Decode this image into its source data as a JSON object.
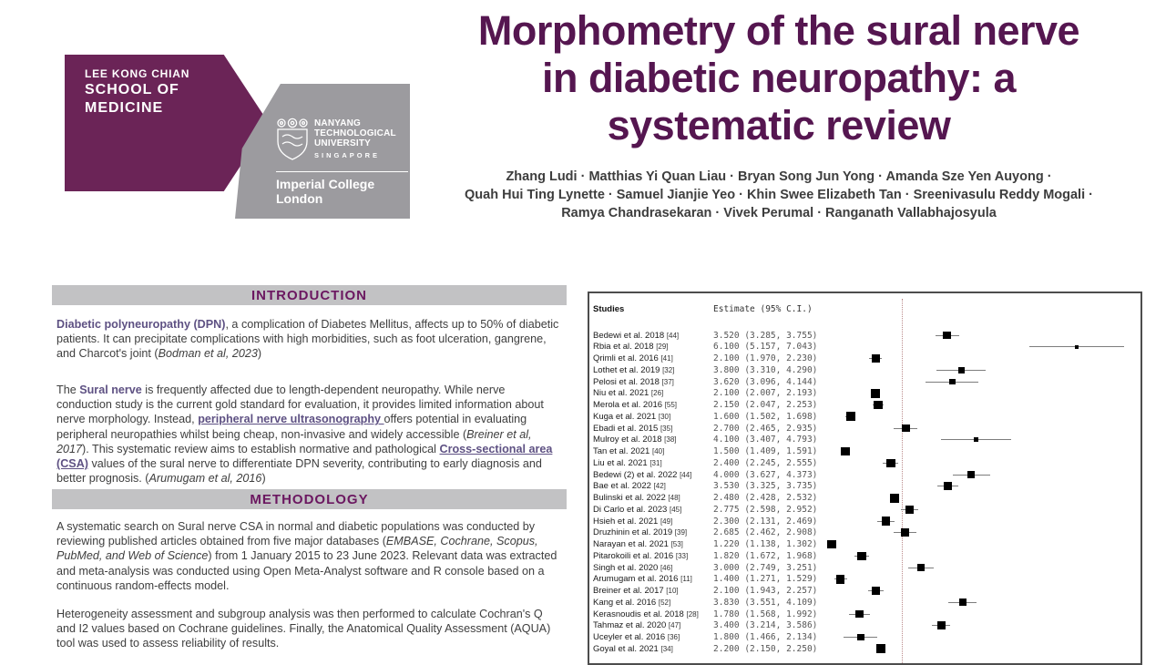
{
  "colors": {
    "maroon": "#6b2457",
    "logo_gray": "#9c9b9f",
    "title_purple": "#551650",
    "heading_purple": "#6b1760",
    "term_purple": "#5e5183",
    "bar_gray": "#c2c2c4",
    "ref_line": "#bb8b8b"
  },
  "logo": {
    "school_lines": [
      "LEE KONG CHIAN",
      "SCHOOL OF",
      "MEDICINE"
    ],
    "ntu_lines": [
      "NANYANG",
      "TECHNOLOGICAL",
      "UNIVERSITY"
    ],
    "ntu_country": "SINGAPORE",
    "imperial_lines": [
      "Imperial College",
      "London"
    ]
  },
  "header": {
    "title_lines": [
      "Morphometry of the sural nerve",
      "in diabetic neuropathy: a",
      "systematic review"
    ],
    "author_lines": [
      "Zhang Ludi  · Matthias Yi Quan Liau  · Bryan Song Jun Yong  · Amanda Sze Yen Auyong  ·",
      "Quah Hui Ting Lynette  · Samuel Jianjie Yeo  · Khin Swee Elizabeth Tan  · Sreenivasulu Reddy Mogali  ·",
      "Ramya Chandrasekaran  · Vivek Perumal  · Ranganath Vallabhajosyula"
    ]
  },
  "intro": {
    "heading": "INTRODUCTION",
    "paragraphs": [
      [
        {
          "s": "term",
          "t": "Diabetic polyneuropathy (DPN)"
        },
        {
          "s": "n",
          "t": ", a complication of Diabetes Mellitus, affects up to 50% of diabetic patients. It can precipitate complications with high morbidities, such as foot ulceration, gangrene, and Charcot's joint ("
        },
        {
          "s": "i",
          "t": "Bodman et al, 2023"
        },
        {
          "s": "n",
          "t": ")"
        }
      ],
      [
        {
          "s": "n",
          "t": "The "
        },
        {
          "s": "term",
          "t": "Sural nerve"
        },
        {
          "s": "n",
          "t": " is frequently affected due to length-dependent neuropathy. While nerve conduction study is the current gold standard for evaluation, it provides limited information about nerve morphology. Instead, "
        },
        {
          "s": "termu",
          "t": "peripheral nerve ultrasonography "
        },
        {
          "s": "n",
          "t": "offers potential in evaluating peripheral neuropathies whilst being cheap, non-invasive and widely accessible ("
        },
        {
          "s": "i",
          "t": "Breiner et al, 2017"
        },
        {
          "s": "n",
          "t": "). This systematic review aims to establish normative and pathological "
        },
        {
          "s": "termu",
          "t": "Cross-sectional area (CSA)"
        },
        {
          "s": "n",
          "t": " values of the sural nerve to differentiate DPN severity, contributing to early diagnosis and better prognosis. ("
        },
        {
          "s": "i",
          "t": "Arumugam et al, 2016"
        },
        {
          "s": "n",
          "t": ")"
        }
      ]
    ]
  },
  "methodology": {
    "heading": "METHODOLOGY",
    "paragraphs": [
      [
        {
          "s": "n",
          "t": "A systematic search on Sural nerve CSA in normal and diabetic populations was conducted by reviewing published articles obtained from five major databases ("
        },
        {
          "s": "i",
          "t": "EMBASE, Cochrane, Scopus, PubMed, and Web of Science"
        },
        {
          "s": "n",
          "t": ") from 1 January 2015 to 23 June 2023. Relevant data was extracted and meta-analysis was conducted using Open Meta-Analyst software and R console based on a continuous random-effects model."
        }
      ],
      [
        {
          "s": "n",
          "t": "Heterogeneity assessment and subgroup analysis was then performed to calculate Cochran's Q and I2 values based on Cochrane guidelines. Finally, the Anatomical Quality Assessment (AQUA) tool was used to assess reliability of results."
        }
      ]
    ]
  },
  "chart_data": {
    "type": "forest",
    "columns": [
      "Studies",
      "Estimate (95% C.I.)"
    ],
    "ref_line_value_approx": 2.62,
    "x_range_visible": [
      1.0,
      7.4
    ],
    "studies": [
      {
        "label": "Bedewi et al. 2018",
        "ref": "[44]",
        "estimate": 3.52,
        "ci_low": 3.285,
        "ci_high": 3.755
      },
      {
        "label": "Rbia et al. 2018",
        "ref": "[29]",
        "estimate": 6.1,
        "ci_low": 5.157,
        "ci_high": 7.043
      },
      {
        "label": "Qrimli et al. 2016",
        "ref": "[41]",
        "estimate": 2.1,
        "ci_low": 1.97,
        "ci_high": 2.23
      },
      {
        "label": "Lothet et al. 2019",
        "ref": "[32]",
        "estimate": 3.8,
        "ci_low": 3.31,
        "ci_high": 4.29
      },
      {
        "label": "Pelosi et al. 2018",
        "ref": "[37]",
        "estimate": 3.62,
        "ci_low": 3.096,
        "ci_high": 4.144
      },
      {
        "label": "Niu et al. 2021",
        "ref": "[26]",
        "estimate": 2.1,
        "ci_low": 2.007,
        "ci_high": 2.193
      },
      {
        "label": "Merola et al. 2016",
        "ref": "[55]",
        "estimate": 2.15,
        "ci_low": 2.047,
        "ci_high": 2.253
      },
      {
        "label": "Kuga et al. 2021",
        "ref": "[30]",
        "estimate": 1.6,
        "ci_low": 1.502,
        "ci_high": 1.698
      },
      {
        "label": "Ebadi et al. 2015",
        "ref": "[35]",
        "estimate": 2.7,
        "ci_low": 2.465,
        "ci_high": 2.935
      },
      {
        "label": "Mulroy et al. 2018",
        "ref": "[38]",
        "estimate": 4.1,
        "ci_low": 3.407,
        "ci_high": 4.793
      },
      {
        "label": "Tan et al. 2021",
        "ref": "[40]",
        "estimate": 1.5,
        "ci_low": 1.409,
        "ci_high": 1.591
      },
      {
        "label": "Liu et al. 2021",
        "ref": "[31]",
        "estimate": 2.4,
        "ci_low": 2.245,
        "ci_high": 2.555
      },
      {
        "label": "Bedewi (2) et al. 2022",
        "ref": "[44]",
        "estimate": 4.0,
        "ci_low": 3.627,
        "ci_high": 4.373
      },
      {
        "label": "Bae et al. 2022",
        "ref": "[42]",
        "estimate": 3.53,
        "ci_low": 3.325,
        "ci_high": 3.735
      },
      {
        "label": "Bulinski et al. 2022",
        "ref": "[48]",
        "estimate": 2.48,
        "ci_low": 2.428,
        "ci_high": 2.532
      },
      {
        "label": "Di Carlo et al. 2023",
        "ref": "[45]",
        "estimate": 2.775,
        "ci_low": 2.598,
        "ci_high": 2.952
      },
      {
        "label": "Hsieh et al. 2021",
        "ref": "[49]",
        "estimate": 2.3,
        "ci_low": 2.131,
        "ci_high": 2.469
      },
      {
        "label": "Druzhinin et al. 2019",
        "ref": "[39]",
        "estimate": 2.685,
        "ci_low": 2.462,
        "ci_high": 2.908
      },
      {
        "label": "Narayan et al. 2021",
        "ref": "[53]",
        "estimate": 1.22,
        "ci_low": 1.138,
        "ci_high": 1.302
      },
      {
        "label": "Pitarokoili et al. 2016",
        "ref": "[33]",
        "estimate": 1.82,
        "ci_low": 1.672,
        "ci_high": 1.968
      },
      {
        "label": "Singh et al. 2020",
        "ref": "[46]",
        "estimate": 3.0,
        "ci_low": 2.749,
        "ci_high": 3.251
      },
      {
        "label": "Arumugam et al. 2016",
        "ref": "[11]",
        "estimate": 1.4,
        "ci_low": 1.271,
        "ci_high": 1.529
      },
      {
        "label": "Breiner et al. 2017",
        "ref": "[10]",
        "estimate": 2.1,
        "ci_low": 1.943,
        "ci_high": 2.257
      },
      {
        "label": "Kang et al. 2016",
        "ref": "[52]",
        "estimate": 3.83,
        "ci_low": 3.551,
        "ci_high": 4.109
      },
      {
        "label": "Kerasnoudis et al. 2018",
        "ref": "[28]",
        "estimate": 1.78,
        "ci_low": 1.568,
        "ci_high": 1.992
      },
      {
        "label": "Tahmaz et al. 2020",
        "ref": "[47]",
        "estimate": 3.4,
        "ci_low": 3.214,
        "ci_high": 3.586
      },
      {
        "label": "Uceyler et al. 2016",
        "ref": "[36]",
        "estimate": 1.8,
        "ci_low": 1.466,
        "ci_high": 2.134
      },
      {
        "label": "Goyal et al. 2021",
        "ref": "[34]",
        "estimate": 2.2,
        "ci_low": 2.15,
        "ci_high": 2.25
      }
    ]
  }
}
